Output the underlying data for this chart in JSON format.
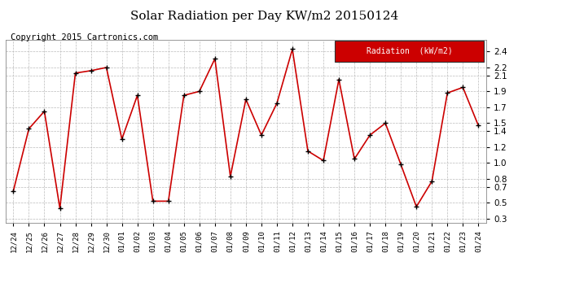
{
  "title": "Solar Radiation per Day KW/m2 20150124",
  "copyright": "Copyright 2015 Cartronics.com",
  "legend_label": "Radiation  (kW/m2)",
  "dates": [
    "12/24",
    "12/25",
    "12/26",
    "12/27",
    "12/28",
    "12/29",
    "12/30",
    "01/01",
    "01/02",
    "01/03",
    "01/04",
    "01/05",
    "01/06",
    "01/07",
    "01/08",
    "01/09",
    "01/10",
    "01/11",
    "01/12",
    "01/13",
    "01/14",
    "01/15",
    "01/16",
    "01/17",
    "01/18",
    "01/19",
    "01/20",
    "01/21",
    "01/22",
    "01/23",
    "01/24"
  ],
  "values": [
    0.65,
    1.43,
    1.65,
    0.43,
    2.13,
    2.16,
    2.2,
    1.3,
    1.85,
    0.52,
    0.52,
    1.85,
    1.9,
    2.31,
    0.83,
    1.8,
    1.35,
    1.75,
    2.43,
    1.15,
    1.03,
    2.05,
    1.05,
    1.35,
    1.5,
    0.98,
    0.45,
    0.77,
    1.88,
    1.95,
    1.47
  ],
  "line_color": "#cc0000",
  "marker_color": "#000000",
  "bg_color": "#ffffff",
  "grid_color": "#bbbbbb",
  "ylim": [
    0.25,
    2.55
  ],
  "yticks": [
    0.3,
    0.5,
    0.7,
    0.8,
    1.0,
    1.2,
    1.4,
    1.5,
    1.7,
    1.9,
    2.1,
    2.2,
    2.4
  ],
  "legend_bg": "#cc0000",
  "legend_text_color": "#ffffff",
  "title_fontsize": 11,
  "copyright_fontsize": 7.5
}
